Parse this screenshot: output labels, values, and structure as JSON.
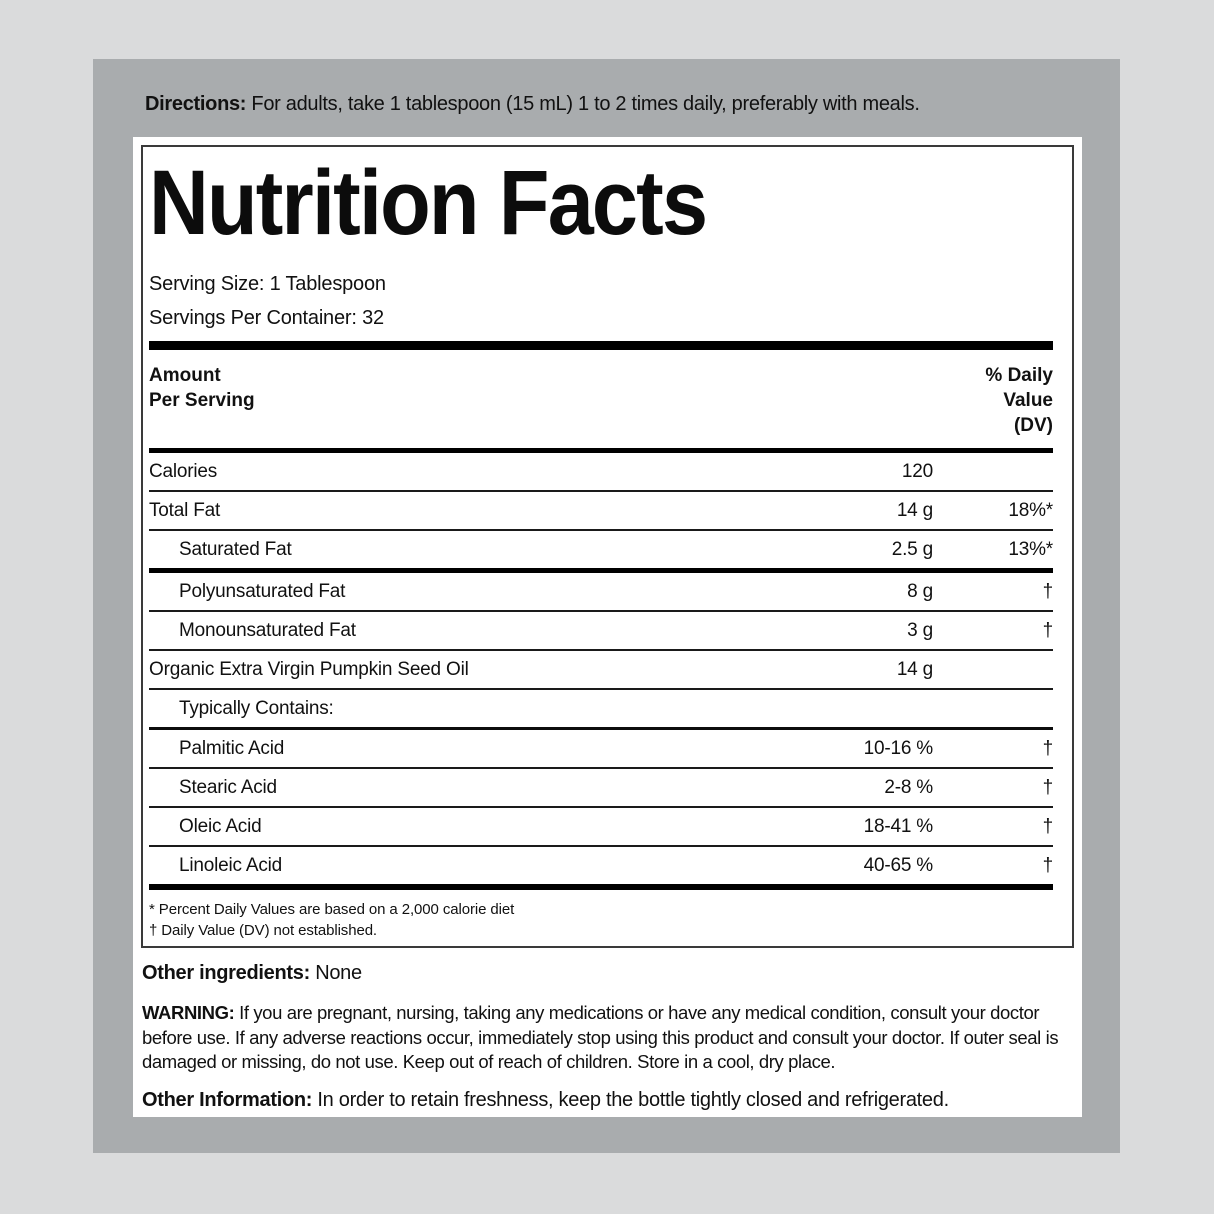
{
  "colors": {
    "page_bg": "#dadbdc",
    "panel_bg": "#a9acae",
    "sheet_bg": "#ffffff",
    "text": "#111111",
    "rule": "#000000"
  },
  "directions": {
    "label": "Directions:",
    "text": " For adults, take 1 tablespoon (15 mL) 1 to 2 times daily, preferably with meals."
  },
  "nutrition_facts": {
    "title": "Nutrition Facts",
    "serving_size": "Serving Size: 1 Tablespoon",
    "servings_per_container": "Servings Per Container: 32",
    "header": {
      "left_lines": [
        "Amount",
        "Per Serving"
      ],
      "right_lines": [
        "% Daily",
        "Value",
        "(DV)"
      ]
    },
    "rows": [
      {
        "name": "Calories",
        "amount": "120",
        "dv": "",
        "indent": false
      },
      {
        "name": "Total Fat",
        "amount": "14 g",
        "dv": "18%*",
        "indent": false
      },
      {
        "name": "Saturated Fat",
        "amount": "2.5 g",
        "dv": "13%*",
        "indent": true
      },
      {
        "name": "Polyunsaturated Fat",
        "amount": "8 g",
        "dv": "†",
        "indent": true
      },
      {
        "name": "Monounsaturated Fat",
        "amount": "3 g",
        "dv": "†",
        "indent": true
      },
      {
        "name": "Organic Extra Virgin Pumpkin Seed Oil",
        "amount": "14 g",
        "dv": "",
        "indent": false
      },
      {
        "name": "Typically Contains:",
        "amount": "",
        "dv": "",
        "indent": true
      },
      {
        "name": "Palmitic Acid",
        "amount": "10-16 %",
        "dv": "†",
        "indent": true
      },
      {
        "name": "Stearic Acid",
        "amount": "2-8 %",
        "dv": "†",
        "indent": true
      },
      {
        "name": "Oleic Acid",
        "amount": "18-41 %",
        "dv": "†",
        "indent": true
      },
      {
        "name": "Linoleic Acid",
        "amount": "40-65 %",
        "dv": "†",
        "indent": true
      }
    ],
    "footnotes": [
      "* Percent Daily Values are based on a 2,000 calorie diet",
      "† Daily Value (DV) not established."
    ]
  },
  "other_ingredients": {
    "label": "Other ingredients:",
    "value": " None"
  },
  "warning": {
    "label": "WARNING:",
    "text": " If you are pregnant, nursing, taking any medications or have any medical condition, consult your doctor before use. If any adverse reactions occur, immediately stop using this product and consult your doctor. If outer seal is damaged or missing, do not use. Keep out of reach of children. Store in a cool, dry place."
  },
  "other_information": {
    "label": "Other Information:",
    "text": " In order to retain freshness, keep the bottle tightly closed and refrigerated."
  }
}
